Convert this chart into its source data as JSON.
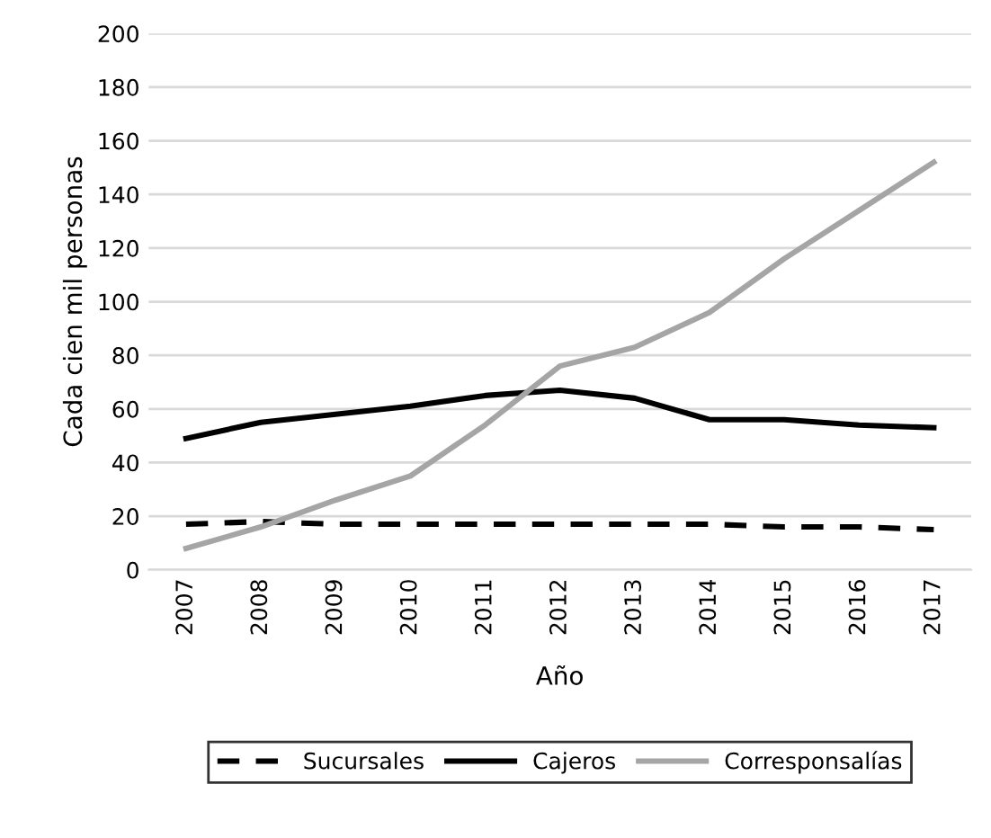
{
  "chart_data": {
    "type": "line",
    "xlabel": "Año",
    "ylabel": "Cada cien mil personas",
    "categories": [
      "2007",
      "2008",
      "2009",
      "2010",
      "2011",
      "2012",
      "2013",
      "2014",
      "2015",
      "2016",
      "2017"
    ],
    "series": [
      {
        "name": "Sucursales",
        "color": "#000000",
        "line_style": "dashed",
        "values": [
          17,
          18,
          17,
          17,
          17,
          17,
          17,
          17,
          16,
          16,
          15
        ]
      },
      {
        "name": "Cajeros",
        "color": "#000000",
        "line_style": "solid",
        "values": [
          49,
          55,
          58,
          61,
          65,
          67,
          64,
          56,
          56,
          54,
          53
        ]
      },
      {
        "name": "Corresponsalías",
        "color": "#a5a5a5",
        "line_style": "solid",
        "values": [
          8,
          16,
          26,
          35,
          54,
          76,
          83,
          96,
          116,
          134,
          152
        ]
      }
    ],
    "ylim": [
      0,
      200
    ],
    "yticks": [
      0,
      20,
      40,
      60,
      80,
      100,
      120,
      140,
      160,
      180,
      200
    ],
    "grid": "y",
    "legend": "bottom"
  }
}
